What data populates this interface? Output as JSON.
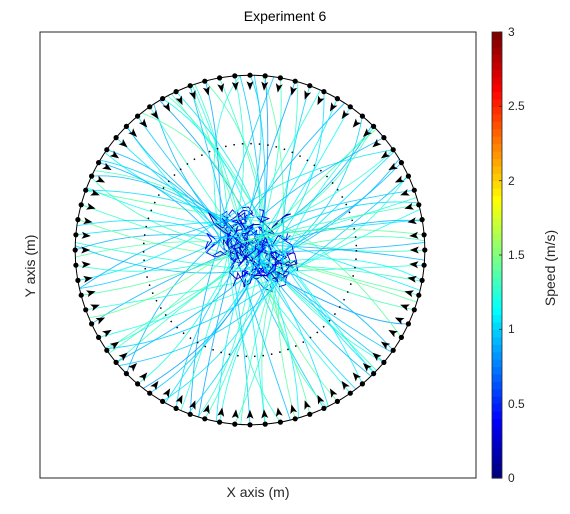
{
  "chart_data": {
    "type": "scatter",
    "title": "Experiment 6",
    "xlabel": "X axis (m)",
    "ylabel": "Y axis (m)",
    "colorbar": {
      "label": "Speed (m/s)",
      "range": [
        0,
        3
      ],
      "ticks": [
        "0",
        "0.5",
        "1",
        "1.5",
        "2",
        "2.5",
        "3"
      ],
      "colormap": "jet"
    },
    "axis_ticks_shown": false,
    "grid": false,
    "outer_circle": {
      "radius_fraction_of_axis": 0.92,
      "agents_on_boundary": 72
    },
    "inner_dotted_circle": {
      "radius_fraction_of_axis": 0.56
    },
    "trajectory_count": 72,
    "colors": {
      "axes": "#262626",
      "agent": "#000000",
      "circle": "#000000"
    }
  }
}
